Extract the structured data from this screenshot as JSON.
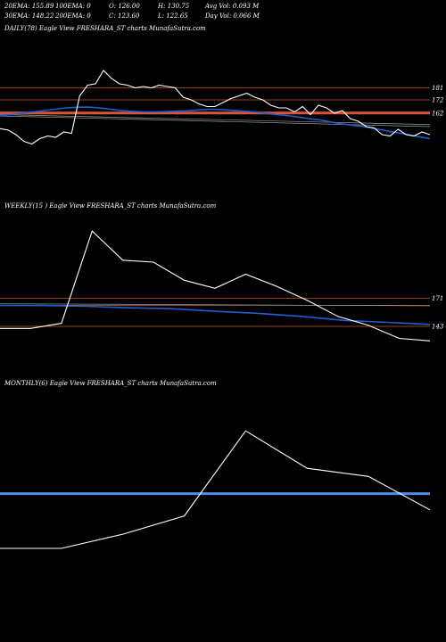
{
  "header": {
    "row1": [
      "20EMA: 155.89",
      "100EMA: 0",
      "O: 126.00",
      "H: 130.75",
      "Avg Vol: 0.093 M"
    ],
    "row2": [
      "30EMA: 148.22",
      "200EMA: 0",
      "C: 123.60",
      "L: 122.65",
      "Day Vol: 0.066  M"
    ]
  },
  "panels": {
    "daily_title": "DAILY(78) Eagle   View  FRESHARA_ST charts MunafaSutra.com",
    "weekly_title": "WEEKLY(15                     ) Eagle   View  FRESHARA_ST charts MunafaSutra.com",
    "monthly_title": "MONTHLY(6) Eagle   View  FRESHARA_ST charts MunafaSutra.com"
  },
  "colors": {
    "background": "#000000",
    "price": "#ffffff",
    "ema_blue": "#1e5fd6",
    "level": "#c05a1e",
    "level_thick": "#e0513a",
    "monthly_ema": "#4a90e8",
    "trend_gray": "#9a9a9a"
  },
  "chart_data": [
    {
      "type": "line",
      "name": "daily",
      "yticks": [
        181,
        172,
        162
      ],
      "ylim": [
        100,
        220
      ],
      "levels": [
        181,
        172,
        163,
        162
      ],
      "thick_level": 162,
      "price": [
        150.5,
        149.5,
        146,
        141,
        139,
        143,
        145,
        144,
        148,
        147,
        175,
        183,
        184,
        194,
        188,
        184,
        183,
        181,
        182,
        181,
        183,
        182,
        181,
        174,
        172,
        169,
        167,
        167,
        170,
        173,
        175,
        177,
        174,
        172,
        168,
        166,
        166,
        163,
        167,
        161,
        168,
        166,
        162,
        164,
        158,
        156,
        152,
        151,
        146,
        145,
        150,
        146,
        145,
        148,
        146
      ],
      "ema": [
        160.5,
        161,
        162,
        163,
        164,
        165,
        166,
        166.5,
        166.6,
        166,
        165,
        164,
        163.4,
        163,
        163,
        163.2,
        163.6,
        163.8,
        164.5,
        165,
        164.7,
        164.2,
        163.6,
        163,
        162,
        161,
        160.3,
        159.2,
        158,
        157,
        155.5,
        154,
        153,
        152,
        150.5,
        149,
        147.5,
        146,
        144.5,
        143
      ]
    },
    {
      "type": "line",
      "name": "weekly",
      "yticks": [
        171,
        143
      ],
      "ylim": [
        95,
        255
      ],
      "levels": [
        171,
        164,
        143
      ],
      "price": [
        141,
        141,
        146,
        238,
        209,
        207,
        189,
        181,
        195,
        183,
        169,
        153,
        144,
        131,
        128.5
      ],
      "ema": [
        164,
        163.8,
        163,
        161.5,
        160.6,
        158,
        156,
        153,
        149,
        147,
        145
      ]
    },
    {
      "type": "line",
      "name": "monthly",
      "ylim": [
        80,
        300
      ],
      "levels": [
        200
      ],
      "price": [
        146,
        146,
        160,
        178,
        262,
        225,
        217,
        184
      ]
    }
  ]
}
